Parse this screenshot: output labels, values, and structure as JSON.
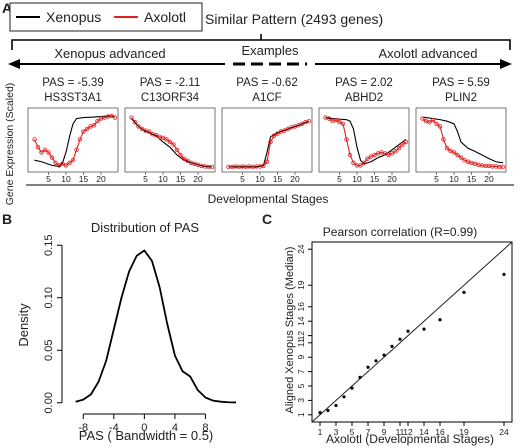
{
  "panel_a": {
    "label": "A",
    "legend": [
      {
        "name": "Xenopus",
        "color": "#000000"
      },
      {
        "name": "Axolotl",
        "color": "#e02020"
      }
    ],
    "similar_pattern": "Similar Pattern (2493 genes)",
    "xenopus_advanced": "Xenopus advanced",
    "examples": "Examples",
    "axolotl_advanced": "Axolotl advanced",
    "ylabel": "Gene Expression (Scaled)",
    "xlabel": "Developmental Stages"
  },
  "panel_b": {
    "label": "B"
  },
  "panel_c": {
    "label": "C"
  },
  "chart_data": [
    {
      "type": "line",
      "panel": "A",
      "xlim": [
        0,
        24
      ],
      "xticks": [
        5,
        10,
        15,
        20
      ],
      "genes": [
        {
          "pas": "PAS = -5.39",
          "gene": "HS3ST3A1",
          "xenopus": [
            [
              1,
              0.15
            ],
            [
              3,
              0.12
            ],
            [
              6,
              0.05
            ],
            [
              8,
              0.03
            ],
            [
              9,
              0.1
            ],
            [
              10,
              0.3
            ],
            [
              11,
              0.6
            ],
            [
              12,
              0.85
            ],
            [
              13,
              0.95
            ],
            [
              15,
              0.97
            ],
            [
              18,
              0.98
            ],
            [
              20,
              0.99
            ],
            [
              22,
              1.0
            ],
            [
              24,
              1.0
            ]
          ],
          "axolotl": [
            [
              1,
              0.55
            ],
            [
              2,
              0.4
            ],
            [
              3,
              0.3
            ],
            [
              4,
              0.35
            ],
            [
              5,
              0.3
            ],
            [
              6,
              0.2
            ],
            [
              7,
              0.1
            ],
            [
              8,
              0.05
            ],
            [
              9,
              0.08
            ],
            [
              10,
              0.05
            ],
            [
              11,
              0.1
            ],
            [
              12,
              0.15
            ],
            [
              13,
              0.35
            ],
            [
              14,
              0.55
            ],
            [
              15,
              0.7
            ],
            [
              16,
              0.75
            ],
            [
              17,
              0.8
            ],
            [
              18,
              0.82
            ],
            [
              19,
              0.9
            ],
            [
              20,
              0.95
            ],
            [
              21,
              0.97
            ],
            [
              22,
              0.99
            ],
            [
              23,
              1.0
            ],
            [
              24,
              0.97
            ]
          ]
        },
        {
          "pas": "PAS = -2.11",
          "gene": "C13ORF34",
          "xenopus": [
            [
              1,
              0.95
            ],
            [
              3,
              0.8
            ],
            [
              5,
              0.7
            ],
            [
              8,
              0.62
            ],
            [
              10,
              0.5
            ],
            [
              12,
              0.4
            ],
            [
              14,
              0.25
            ],
            [
              16,
              0.15
            ],
            [
              18,
              0.1
            ],
            [
              20,
              0.06
            ],
            [
              22,
              0.03
            ],
            [
              24,
              0.02
            ]
          ],
          "axolotl": [
            [
              1,
              0.97
            ],
            [
              2,
              0.88
            ],
            [
              3,
              0.8
            ],
            [
              4,
              0.75
            ],
            [
              5,
              0.72
            ],
            [
              6,
              0.7
            ],
            [
              7,
              0.65
            ],
            [
              8,
              0.63
            ],
            [
              9,
              0.6
            ],
            [
              10,
              0.58
            ],
            [
              11,
              0.55
            ],
            [
              12,
              0.5
            ],
            [
              13,
              0.45
            ],
            [
              14,
              0.35
            ],
            [
              15,
              0.25
            ],
            [
              16,
              0.18
            ],
            [
              17,
              0.14
            ],
            [
              18,
              0.1
            ],
            [
              19,
              0.08
            ],
            [
              20,
              0.06
            ],
            [
              21,
              0.04
            ],
            [
              22,
              0.03
            ],
            [
              23,
              0.02
            ],
            [
              24,
              0.02
            ]
          ]
        },
        {
          "pas": "PAS = -0.62",
          "gene": "A1CF",
          "xenopus": [
            [
              1,
              0.02
            ],
            [
              5,
              0.02
            ],
            [
              9,
              0.02
            ],
            [
              11,
              0.05
            ],
            [
              12,
              0.3
            ],
            [
              13,
              0.6
            ],
            [
              15,
              0.68
            ],
            [
              18,
              0.75
            ],
            [
              21,
              0.82
            ],
            [
              24,
              0.9
            ]
          ],
          "axolotl": [
            [
              1,
              0.02
            ],
            [
              2,
              0.02
            ],
            [
              3,
              0.03
            ],
            [
              4,
              0.02
            ],
            [
              5,
              0.03
            ],
            [
              6,
              0.02
            ],
            [
              7,
              0.03
            ],
            [
              8,
              0.02
            ],
            [
              9,
              0.03
            ],
            [
              10,
              0.03
            ],
            [
              11,
              0.04
            ],
            [
              12,
              0.12
            ],
            [
              13,
              0.5
            ],
            [
              14,
              0.62
            ],
            [
              15,
              0.66
            ],
            [
              16,
              0.7
            ],
            [
              17,
              0.72
            ],
            [
              18,
              0.75
            ],
            [
              19,
              0.78
            ],
            [
              20,
              0.8
            ],
            [
              21,
              0.82
            ],
            [
              22,
              0.85
            ],
            [
              23,
              0.88
            ],
            [
              24,
              0.9
            ]
          ]
        },
        {
          "pas": "PAS = 2.02",
          "gene": "ABHD2",
          "xenopus": [
            [
              1,
              0.97
            ],
            [
              3,
              0.95
            ],
            [
              5,
              0.94
            ],
            [
              7,
              0.93
            ],
            [
              8,
              0.9
            ],
            [
              9,
              0.75
            ],
            [
              10,
              0.4
            ],
            [
              11,
              0.15
            ],
            [
              12,
              0.08
            ],
            [
              14,
              0.12
            ],
            [
              16,
              0.2
            ],
            [
              18,
              0.25
            ],
            [
              20,
              0.35
            ],
            [
              22,
              0.45
            ],
            [
              24,
              0.55
            ]
          ],
          "axolotl": [
            [
              1,
              0.97
            ],
            [
              2,
              0.95
            ],
            [
              3,
              0.9
            ],
            [
              4,
              0.92
            ],
            [
              5,
              0.88
            ],
            [
              6,
              0.85
            ],
            [
              7,
              0.55
            ],
            [
              8,
              0.25
            ],
            [
              9,
              0.1
            ],
            [
              10,
              0.05
            ],
            [
              11,
              0.05
            ],
            [
              12,
              0.1
            ],
            [
              13,
              0.18
            ],
            [
              14,
              0.22
            ],
            [
              15,
              0.25
            ],
            [
              16,
              0.28
            ],
            [
              17,
              0.3
            ],
            [
              18,
              0.28
            ],
            [
              19,
              0.25
            ],
            [
              20,
              0.28
            ],
            [
              21,
              0.32
            ],
            [
              22,
              0.38
            ],
            [
              23,
              0.45
            ],
            [
              24,
              0.5
            ]
          ]
        },
        {
          "pas": "PAS = 5.59",
          "gene": "PLIN2",
          "xenopus": [
            [
              1,
              0.98
            ],
            [
              4,
              0.95
            ],
            [
              6,
              0.93
            ],
            [
              8,
              0.9
            ],
            [
              10,
              0.85
            ],
            [
              11,
              0.7
            ],
            [
              12,
              0.5
            ],
            [
              14,
              0.38
            ],
            [
              16,
              0.32
            ],
            [
              18,
              0.25
            ],
            [
              20,
              0.18
            ],
            [
              22,
              0.12
            ],
            [
              24,
              0.1
            ]
          ],
          "axolotl": [
            [
              1,
              0.95
            ],
            [
              2,
              0.9
            ],
            [
              3,
              0.88
            ],
            [
              4,
              0.92
            ],
            [
              5,
              0.85
            ],
            [
              6,
              0.8
            ],
            [
              7,
              0.55
            ],
            [
              8,
              0.38
            ],
            [
              9,
              0.33
            ],
            [
              10,
              0.3
            ],
            [
              11,
              0.25
            ],
            [
              12,
              0.2
            ],
            [
              13,
              0.15
            ],
            [
              14,
              0.12
            ],
            [
              15,
              0.1
            ],
            [
              16,
              0.08
            ],
            [
              17,
              0.06
            ],
            [
              18,
              0.05
            ],
            [
              19,
              0.04
            ],
            [
              20,
              0.04
            ],
            [
              21,
              0.03
            ],
            [
              22,
              0.03
            ],
            [
              23,
              0.02
            ],
            [
              24,
              0.02
            ]
          ]
        }
      ]
    },
    {
      "type": "line",
      "panel": "B",
      "title": "Distribution of PAS",
      "xlabel": "PAS ( Bandwidth = 0.5)",
      "ylabel": "Density",
      "xlim": [
        -10,
        12
      ],
      "ylim": [
        -0.005,
        0.155
      ],
      "xticks": [
        -8,
        -4,
        0,
        4,
        8
      ],
      "yticks": [
        0.0,
        0.05,
        0.1,
        0.15
      ],
      "ytick_labels": [
        "0.00",
        "0.05",
        "0.10",
        "0.15"
      ],
      "x": [
        -9,
        -8,
        -7,
        -6,
        -5,
        -4,
        -3,
        -2,
        -1,
        0,
        1,
        2,
        3,
        4,
        5,
        6,
        7,
        8,
        9,
        10,
        11,
        12
      ],
      "y": [
        0.001,
        0.003,
        0.008,
        0.02,
        0.04,
        0.07,
        0.1,
        0.125,
        0.14,
        0.145,
        0.135,
        0.11,
        0.075,
        0.045,
        0.03,
        0.025,
        0.012,
        0.005,
        0.002,
        0.001,
        0.0005,
        0.0003
      ]
    },
    {
      "type": "scatter",
      "panel": "C",
      "title": "Pearson correlation (R=0.99)",
      "xlabel": "Axolotl (Developmental Stages)",
      "ylabel": "Aligned Xenopus Stages (Median)",
      "xticks": [
        1,
        3,
        5,
        7,
        9,
        11,
        12,
        14,
        16,
        19,
        24
      ],
      "yticks": [
        1,
        3,
        5,
        7,
        9,
        11,
        12,
        14,
        16,
        19,
        24
      ],
      "x": [
        1,
        2,
        3,
        4,
        5,
        6,
        7,
        8,
        9,
        10,
        11,
        12,
        14,
        16,
        19,
        24
      ],
      "y": [
        1.3,
        1.6,
        2.3,
        3.5,
        4.7,
        6.2,
        7.6,
        8.5,
        9.3,
        10.5,
        11.5,
        12.6,
        12.9,
        14.2,
        18,
        20.5
      ],
      "reference_line": "identity"
    }
  ]
}
